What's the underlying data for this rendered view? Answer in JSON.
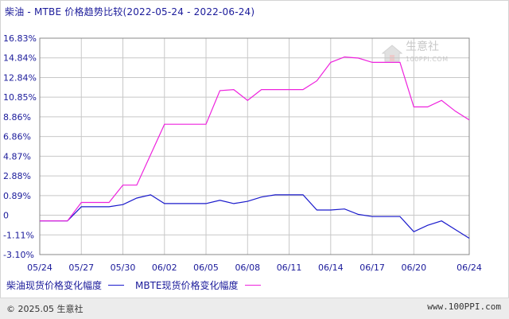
{
  "title": "柴油 - MTBE 价格趋势比较(2022-05-24 - 2022-06-24)",
  "watermark": {
    "brand": "生意社",
    "url": "100PPI.COM"
  },
  "footer": {
    "copyright": "© 2025.05 生意社",
    "url": "www.100PPI.com"
  },
  "colors": {
    "diesel": "#1a1acc",
    "mtbe": "#ee22dd",
    "grid": "#c8c8c8",
    "axis": "#888888",
    "label": "#1a1a9a"
  },
  "chart_data": {
    "type": "line",
    "title": "柴油 - MTBE 价格趋势比较(2022-05-24 - 2022-06-24)",
    "x": [
      "05/24",
      "05/25",
      "05/26",
      "05/27",
      "05/28",
      "05/29",
      "05/30",
      "05/31",
      "06/01",
      "06/02",
      "06/03",
      "06/04",
      "06/05",
      "06/06",
      "06/07",
      "06/08",
      "06/09",
      "06/10",
      "06/11",
      "06/12",
      "06/13",
      "06/14",
      "06/15",
      "06/16",
      "06/17",
      "06/18",
      "06/19",
      "06/20",
      "06/21",
      "06/22",
      "06/23",
      "06/24"
    ],
    "x_tick_labels": [
      "05/24",
      "05/27",
      "05/30",
      "06/02",
      "06/05",
      "06/08",
      "06/11",
      "06/14",
      "06/17",
      "06/20",
      "06/24"
    ],
    "y_tick_labels": [
      "16.83%",
      "14.84%",
      "12.84%",
      "10.85%",
      "8.86%",
      "6.86%",
      "4.87%",
      "2.88%",
      "0.89%",
      "0",
      "-1.11%",
      "-3.10%"
    ],
    "ylim": [
      -3.1,
      16.83
    ],
    "grid": true,
    "legend_position": "bottom-left",
    "series": [
      {
        "name": "柴油现货价格变化幅度",
        "color_key": "diesel",
        "values": [
          0,
          0,
          0,
          1.3,
          1.3,
          1.3,
          1.5,
          2.1,
          2.4,
          1.6,
          1.6,
          1.6,
          1.6,
          1.9,
          1.6,
          1.8,
          2.2,
          2.4,
          2.4,
          2.4,
          1.0,
          1.0,
          1.1,
          0.6,
          0.4,
          0.4,
          0.4,
          -1.0,
          -0.4,
          0.0,
          -0.8,
          -1.6
        ]
      },
      {
        "name": "MBTE现货价格变化幅度",
        "color_key": "mtbe",
        "values": [
          0,
          0,
          0,
          1.7,
          1.7,
          1.7,
          3.3,
          3.3,
          6.1,
          8.9,
          8.9,
          8.9,
          8.9,
          12.0,
          12.1,
          11.1,
          12.1,
          12.1,
          12.1,
          12.1,
          12.9,
          14.6,
          15.1,
          15.0,
          14.6,
          14.6,
          14.6,
          10.5,
          10.5,
          11.1,
          10.1,
          9.3
        ]
      }
    ]
  }
}
